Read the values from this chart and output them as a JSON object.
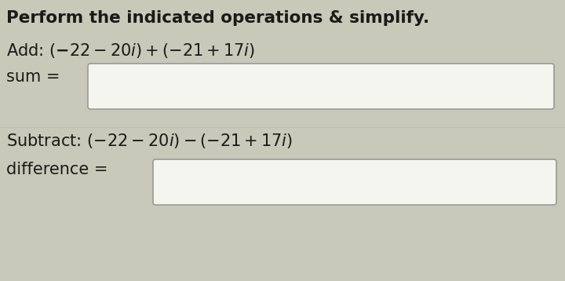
{
  "title": "Perform the indicated operations & simplify.",
  "add_line": "Add: $(-22-20i)+(−21+17i)$",
  "sum_label": "sum =",
  "subtract_line": "Subtract: $(-22-20i)-(−21+17i)$",
  "diff_label": "difference =",
  "bg_color": "#c9c9b9",
  "text_color": "#1a1a1a",
  "box_fill": "#f5f5f0",
  "box_edge": "#999999",
  "title_fontsize": 15.5,
  "body_fontsize": 15,
  "fig_width": 7.2,
  "fig_height": 3.58,
  "dpi": 100
}
